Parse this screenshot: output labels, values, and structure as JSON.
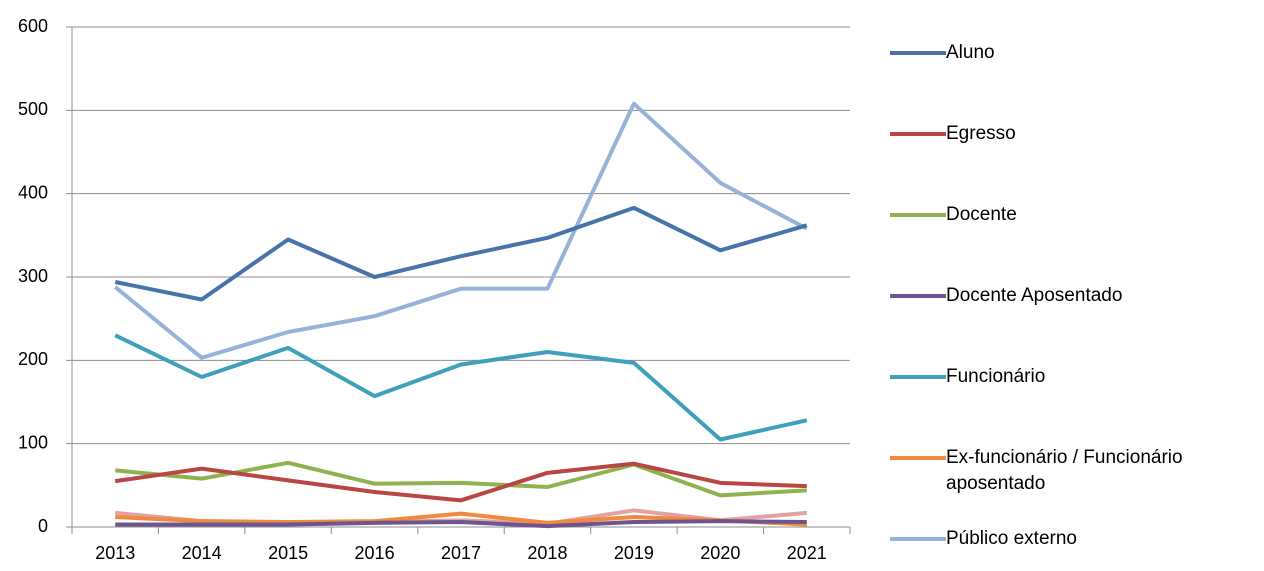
{
  "chart_data": {
    "type": "line",
    "categories": [
      "2013",
      "2014",
      "2015",
      "2016",
      "2017",
      "2018",
      "2019",
      "2020",
      "2021"
    ],
    "series": [
      {
        "name": "Aluno",
        "color": "#4673aa",
        "values": [
          294,
          273,
          345,
          300,
          325,
          347,
          383,
          332,
          362
        ]
      },
      {
        "name": "Egresso",
        "color": "#b84643",
        "values": [
          55,
          70,
          56,
          42,
          32,
          65,
          76,
          53,
          49
        ]
      },
      {
        "name": "Docente",
        "color": "#8fb24f",
        "values": [
          68,
          58,
          77,
          52,
          53,
          48,
          75,
          38,
          44
        ]
      },
      {
        "name": "Docente Aposentado",
        "color": "#6e558f",
        "values": [
          3,
          3,
          3,
          5,
          6,
          1,
          6,
          7,
          6
        ]
      },
      {
        "name": "Funcionário",
        "color": "#3ea0bb",
        "values": [
          230,
          180,
          215,
          157,
          195,
          210,
          197,
          105,
          128
        ]
      },
      {
        "name": "Ex-funcionário  / Funcionário aposentado",
        "color": "#f08a3c",
        "values": [
          12,
          7,
          6,
          7,
          16,
          5,
          12,
          8,
          3
        ]
      },
      {
        "name": "Público externo",
        "color": "#97b2d8",
        "values": [
          288,
          203,
          234,
          253,
          286,
          286,
          508,
          413,
          358
        ]
      },
      {
        "color": "#e3a2a1",
        "values": [
          17,
          7,
          5,
          6,
          8,
          4,
          20,
          8,
          17
        ]
      }
    ],
    "ylim": [
      0,
      600
    ],
    "yticks": [
      0,
      100,
      200,
      300,
      400,
      500,
      600
    ],
    "grid": true
  }
}
